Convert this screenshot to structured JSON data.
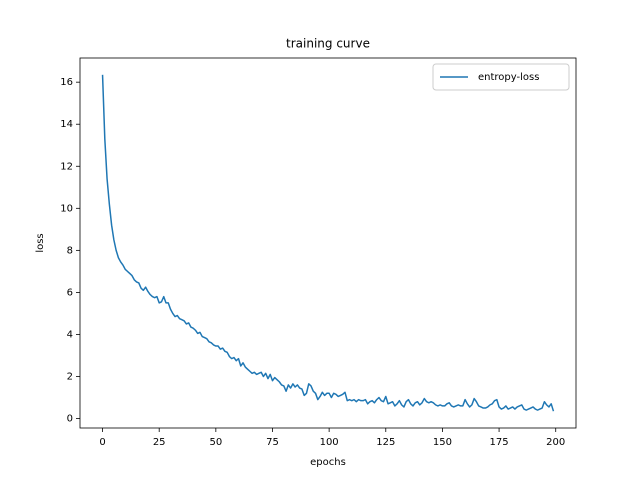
{
  "chart_data": {
    "type": "line",
    "title": "training curve",
    "xlabel": "epochs",
    "ylabel": "loss",
    "x": [
      0,
      1,
      2,
      3,
      4,
      5,
      6,
      7,
      8,
      9,
      10,
      11,
      12,
      13,
      14,
      15,
      16,
      17,
      18,
      19,
      20,
      21,
      22,
      23,
      24,
      25,
      26,
      27,
      28,
      29,
      30,
      31,
      32,
      33,
      34,
      35,
      36,
      37,
      38,
      39,
      40,
      41,
      42,
      43,
      44,
      45,
      46,
      47,
      48,
      49,
      50,
      51,
      52,
      53,
      54,
      55,
      56,
      57,
      58,
      59,
      60,
      61,
      62,
      63,
      64,
      65,
      66,
      67,
      68,
      69,
      70,
      71,
      72,
      73,
      74,
      75,
      76,
      77,
      78,
      79,
      80,
      81,
      82,
      83,
      84,
      85,
      86,
      87,
      88,
      89,
      90,
      91,
      92,
      93,
      94,
      95,
      96,
      97,
      98,
      99,
      100,
      101,
      102,
      103,
      104,
      105,
      106,
      107,
      108,
      109,
      110,
      111,
      112,
      113,
      114,
      115,
      116,
      117,
      118,
      119,
      120,
      121,
      122,
      123,
      124,
      125,
      126,
      127,
      128,
      129,
      130,
      131,
      132,
      133,
      134,
      135,
      136,
      137,
      138,
      139,
      140,
      141,
      142,
      143,
      144,
      145,
      146,
      147,
      148,
      149,
      150,
      151,
      152,
      153,
      154,
      155,
      156,
      157,
      158,
      159,
      160,
      161,
      162,
      163,
      164,
      165,
      166,
      167,
      168,
      169,
      170,
      171,
      172,
      173,
      174,
      175,
      176,
      177,
      178,
      179,
      180,
      181,
      182,
      183,
      184,
      185,
      186,
      187,
      188,
      189,
      190,
      191,
      192,
      193,
      194,
      195,
      196,
      197,
      198,
      199
    ],
    "series": [
      {
        "name": "entropy-loss",
        "color": "#1f77b4",
        "values": [
          16.35,
          13.3,
          11.4,
          10.2,
          9.2,
          8.5,
          8.0,
          7.65,
          7.45,
          7.3,
          7.1,
          7.0,
          6.9,
          6.8,
          6.6,
          6.5,
          6.45,
          6.2,
          6.1,
          6.25,
          6.05,
          5.9,
          5.8,
          5.75,
          5.8,
          5.5,
          5.55,
          5.8,
          5.5,
          5.5,
          5.2,
          5.0,
          4.85,
          4.9,
          4.75,
          4.7,
          4.65,
          4.5,
          4.55,
          4.35,
          4.3,
          4.2,
          4.05,
          4.1,
          3.9,
          3.85,
          3.8,
          3.65,
          3.6,
          3.5,
          3.45,
          3.45,
          3.3,
          3.35,
          3.2,
          3.15,
          2.95,
          2.85,
          2.9,
          2.75,
          2.85,
          2.5,
          2.65,
          2.45,
          2.35,
          2.25,
          2.15,
          2.2,
          2.1,
          2.15,
          2.2,
          2.0,
          2.15,
          1.9,
          2.1,
          1.8,
          1.95,
          1.85,
          1.75,
          1.6,
          1.55,
          1.3,
          1.6,
          1.45,
          1.65,
          1.5,
          1.6,
          1.45,
          1.4,
          1.1,
          1.2,
          1.65,
          1.55,
          1.3,
          1.2,
          0.9,
          1.05,
          1.25,
          1.1,
          1.2,
          1.2,
          1.0,
          1.2,
          1.15,
          1.05,
          1.1,
          1.15,
          1.25,
          0.85,
          0.9,
          0.85,
          0.9,
          0.8,
          0.9,
          0.85,
          0.85,
          0.9,
          0.7,
          0.8,
          0.85,
          0.75,
          0.9,
          1.0,
          0.85,
          0.8,
          1.05,
          0.7,
          0.75,
          0.8,
          0.6,
          0.7,
          0.85,
          0.65,
          0.55,
          0.8,
          0.9,
          0.7,
          0.6,
          0.75,
          0.8,
          0.65,
          0.75,
          0.95,
          0.8,
          0.75,
          0.8,
          0.75,
          0.65,
          0.6,
          0.65,
          0.6,
          0.6,
          0.7,
          0.75,
          0.6,
          0.55,
          0.6,
          0.65,
          0.6,
          0.6,
          0.9,
          0.7,
          0.55,
          0.65,
          0.95,
          0.8,
          0.6,
          0.55,
          0.5,
          0.5,
          0.55,
          0.65,
          0.7,
          0.85,
          0.9,
          0.55,
          0.45,
          0.5,
          0.6,
          0.45,
          0.5,
          0.55,
          0.45,
          0.55,
          0.6,
          0.65,
          0.45,
          0.4,
          0.45,
          0.5,
          0.55,
          0.45,
          0.4,
          0.45,
          0.5,
          0.8,
          0.65,
          0.55,
          0.7,
          0.35
        ]
      }
    ],
    "xlim": [
      -9.95,
      208.95
    ],
    "ylim": [
      -0.45,
      17.15
    ],
    "xticks": [
      0,
      25,
      50,
      75,
      100,
      125,
      150,
      175,
      200
    ],
    "yticks": [
      0,
      2,
      4,
      6,
      8,
      10,
      12,
      14,
      16
    ],
    "legend": "upper right"
  }
}
